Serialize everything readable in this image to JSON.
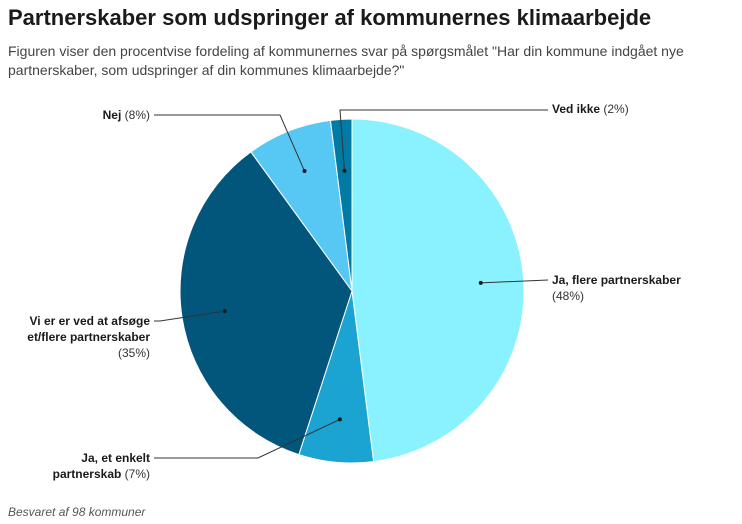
{
  "title": "Partnerskaber som udspringer af kommunernes klimaarbejde",
  "subtitle": "Figuren viser den procentvise fordeling af kommunernes svar på spørgsmålet \"Har din kommune indgået nye partnerskaber, som udspringer af din kommunes klimaarbejde?\"",
  "footer": "Besvaret af 98 kommuner",
  "chart_data": {
    "type": "pie",
    "title": "Partnerskaber som udspringer af kommunernes klimaarbejde",
    "slices": [
      {
        "label": "Ja, flere partnerskaber",
        "label_lines": [
          "Ja, flere partnerskaber"
        ],
        "pct_text": "(48%)",
        "value": 48,
        "color": "#8af2ff"
      },
      {
        "label": "Ja, et enkelt partnerskab",
        "label_lines": [
          "Ja, et enkelt",
          "partnerskab"
        ],
        "pct_text": "(7%)",
        "value": 7,
        "color": "#1ba3d1"
      },
      {
        "label": "Vi er er ved at afsøge et/flere partnerskaber",
        "label_lines": [
          "Vi er er ved at afsøge",
          "et/flere partnerskaber"
        ],
        "pct_text": "(35%)",
        "value": 35,
        "color": "#02557b"
      },
      {
        "label": "Nej",
        "label_lines": [
          "Nej"
        ],
        "pct_text": "(8%)",
        "value": 8,
        "color": "#57c8f4"
      },
      {
        "label": "Ved ikke",
        "label_lines": [
          "Ved ikke"
        ],
        "pct_text": "(2%)",
        "value": 2,
        "color": "#027aa3"
      }
    ]
  }
}
